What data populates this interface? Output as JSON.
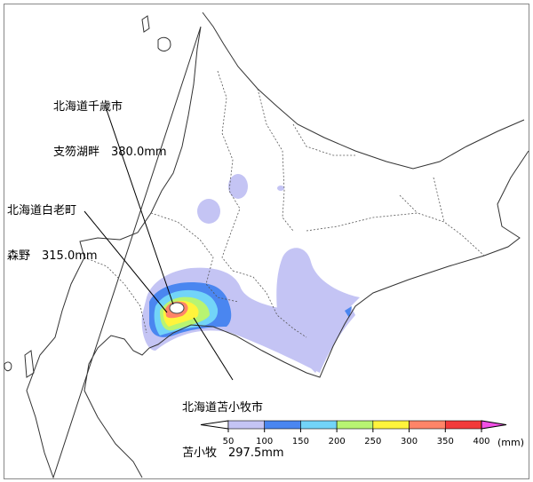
{
  "annotations": [
    {
      "line1": "北海道千歳市",
      "line2": "支笏湖畔　380.0mm"
    },
    {
      "line1": "北海道白老町",
      "line2": "森野　315.0mm"
    },
    {
      "line1": "北海道苫小牧市",
      "line2": "苫小牧　297.5mm"
    }
  ],
  "legend": {
    "ticks": [
      "50",
      "100",
      "150",
      "200",
      "250",
      "300",
      "350",
      "400"
    ],
    "unit": "(mm)",
    "colors": [
      "#ffffff",
      "#c4c4f4",
      "#4a86f0",
      "#72d4f8",
      "#b8f472",
      "#fff43c",
      "#ff8468",
      "#f23a3a",
      "#f250e6"
    ]
  }
}
